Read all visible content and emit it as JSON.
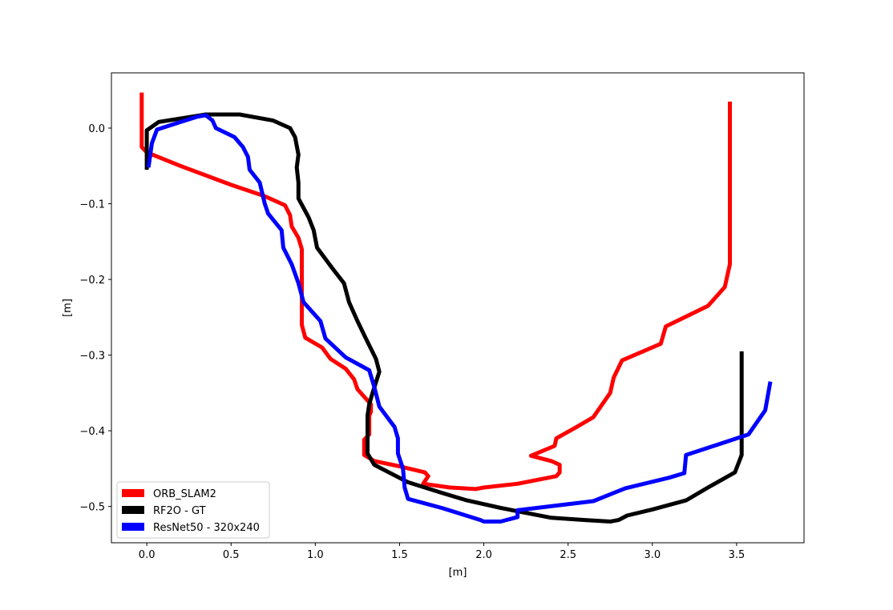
{
  "chart_data": {
    "type": "line",
    "title": "",
    "xlabel": "[m]",
    "ylabel": "[m]",
    "xlim": [
      -0.21,
      3.9
    ],
    "ylim": [
      -0.548,
      0.073
    ],
    "xticks": [
      0.0,
      0.5,
      1.0,
      1.5,
      2.0,
      2.5,
      3.0,
      3.5
    ],
    "xtick_labels": [
      "0.0",
      "0.5",
      "1.0",
      "1.5",
      "2.0",
      "2.5",
      "3.0",
      "3.5"
    ],
    "yticks": [
      0.0,
      -0.1,
      -0.2,
      -0.3,
      -0.4,
      -0.5
    ],
    "ytick_labels": [
      "0.0",
      "−0.1",
      "−0.2",
      "−0.3",
      "−0.4",
      "−0.5"
    ],
    "grid": false,
    "legend_position": "lower-left",
    "series": [
      {
        "name": "ORB_SLAM2",
        "color": "#ff0000",
        "points": [
          [
            -0.03,
            0.047
          ],
          [
            -0.03,
            0.0
          ],
          [
            -0.03,
            -0.025
          ],
          [
            0.0,
            -0.032
          ],
          [
            0.2,
            -0.05
          ],
          [
            0.5,
            -0.075
          ],
          [
            0.7,
            -0.09
          ],
          [
            0.82,
            -0.102
          ],
          [
            0.85,
            -0.115
          ],
          [
            0.86,
            -0.13
          ],
          [
            0.9,
            -0.145
          ],
          [
            0.92,
            -0.16
          ],
          [
            0.92,
            -0.23
          ],
          [
            0.92,
            -0.26
          ],
          [
            0.94,
            -0.277
          ],
          [
            1.04,
            -0.29
          ],
          [
            1.09,
            -0.305
          ],
          [
            1.18,
            -0.318
          ],
          [
            1.23,
            -0.332
          ],
          [
            1.25,
            -0.345
          ],
          [
            1.33,
            -0.365
          ],
          [
            1.33,
            -0.375
          ],
          [
            1.32,
            -0.38
          ],
          [
            1.32,
            -0.405
          ],
          [
            1.29,
            -0.412
          ],
          [
            1.29,
            -0.432
          ],
          [
            1.35,
            -0.44
          ],
          [
            1.5,
            -0.447
          ],
          [
            1.65,
            -0.455
          ],
          [
            1.67,
            -0.46
          ],
          [
            1.64,
            -0.47
          ],
          [
            1.8,
            -0.475
          ],
          [
            1.95,
            -0.477
          ],
          [
            2.0,
            -0.475
          ],
          [
            2.2,
            -0.47
          ],
          [
            2.43,
            -0.46
          ],
          [
            2.45,
            -0.455
          ],
          [
            2.45,
            -0.445
          ],
          [
            2.4,
            -0.44
          ],
          [
            2.28,
            -0.433
          ],
          [
            2.42,
            -0.42
          ],
          [
            2.43,
            -0.41
          ],
          [
            2.55,
            -0.395
          ],
          [
            2.65,
            -0.382
          ],
          [
            2.75,
            -0.35
          ],
          [
            2.77,
            -0.33
          ],
          [
            2.82,
            -0.307
          ],
          [
            3.05,
            -0.285
          ],
          [
            3.08,
            -0.262
          ],
          [
            3.33,
            -0.235
          ],
          [
            3.43,
            -0.21
          ],
          [
            3.46,
            -0.18
          ],
          [
            3.46,
            0.035
          ]
        ]
      },
      {
        "name": "RF2O - GT",
        "color": "#000000",
        "points": [
          [
            0.0,
            -0.055
          ],
          [
            0.0,
            -0.003
          ],
          [
            0.07,
            0.008
          ],
          [
            0.35,
            0.018
          ],
          [
            0.55,
            0.018
          ],
          [
            0.75,
            0.01
          ],
          [
            0.85,
            0.0
          ],
          [
            0.88,
            -0.012
          ],
          [
            0.9,
            -0.035
          ],
          [
            0.89,
            -0.052
          ],
          [
            0.9,
            -0.072
          ],
          [
            0.9,
            -0.093
          ],
          [
            0.96,
            -0.118
          ],
          [
            0.99,
            -0.135
          ],
          [
            1.01,
            -0.158
          ],
          [
            1.1,
            -0.185
          ],
          [
            1.17,
            -0.205
          ],
          [
            1.2,
            -0.23
          ],
          [
            1.25,
            -0.255
          ],
          [
            1.3,
            -0.278
          ],
          [
            1.36,
            -0.305
          ],
          [
            1.38,
            -0.322
          ],
          [
            1.34,
            -0.35
          ],
          [
            1.32,
            -0.365
          ],
          [
            1.31,
            -0.38
          ],
          [
            1.31,
            -0.43
          ],
          [
            1.35,
            -0.445
          ],
          [
            1.55,
            -0.468
          ],
          [
            1.75,
            -0.482
          ],
          [
            1.9,
            -0.492
          ],
          [
            2.1,
            -0.502
          ],
          [
            2.4,
            -0.515
          ],
          [
            2.6,
            -0.518
          ],
          [
            2.75,
            -0.52
          ],
          [
            2.8,
            -0.518
          ],
          [
            2.85,
            -0.512
          ],
          [
            3.0,
            -0.504
          ],
          [
            3.2,
            -0.492
          ],
          [
            3.33,
            -0.475
          ],
          [
            3.49,
            -0.455
          ],
          [
            3.53,
            -0.432
          ],
          [
            3.53,
            -0.295
          ]
        ]
      },
      {
        "name": "ResNet50 - 320x240",
        "color": "#0000ff",
        "points": [
          [
            0.01,
            -0.052
          ],
          [
            0.03,
            -0.02
          ],
          [
            0.06,
            -0.002
          ],
          [
            0.2,
            0.008
          ],
          [
            0.3,
            0.015
          ],
          [
            0.35,
            0.017
          ],
          [
            0.39,
            0.01
          ],
          [
            0.41,
            0.0
          ],
          [
            0.52,
            -0.012
          ],
          [
            0.57,
            -0.025
          ],
          [
            0.6,
            -0.038
          ],
          [
            0.61,
            -0.055
          ],
          [
            0.67,
            -0.072
          ],
          [
            0.7,
            -0.1
          ],
          [
            0.72,
            -0.113
          ],
          [
            0.8,
            -0.135
          ],
          [
            0.81,
            -0.158
          ],
          [
            0.86,
            -0.18
          ],
          [
            0.9,
            -0.205
          ],
          [
            0.93,
            -0.23
          ],
          [
            1.03,
            -0.255
          ],
          [
            1.06,
            -0.278
          ],
          [
            1.18,
            -0.303
          ],
          [
            1.32,
            -0.32
          ],
          [
            1.35,
            -0.342
          ],
          [
            1.38,
            -0.368
          ],
          [
            1.47,
            -0.395
          ],
          [
            1.49,
            -0.41
          ],
          [
            1.49,
            -0.43
          ],
          [
            1.52,
            -0.45
          ],
          [
            1.53,
            -0.475
          ],
          [
            1.55,
            -0.49
          ],
          [
            1.75,
            -0.502
          ],
          [
            1.98,
            -0.518
          ],
          [
            2.0,
            -0.52
          ],
          [
            2.1,
            -0.52
          ],
          [
            2.2,
            -0.514
          ],
          [
            2.2,
            -0.505
          ],
          [
            2.65,
            -0.493
          ],
          [
            2.84,
            -0.476
          ],
          [
            3.1,
            -0.462
          ],
          [
            3.19,
            -0.456
          ],
          [
            3.2,
            -0.432
          ],
          [
            3.57,
            -0.405
          ],
          [
            3.67,
            -0.373
          ],
          [
            3.7,
            -0.335
          ]
        ]
      }
    ]
  }
}
